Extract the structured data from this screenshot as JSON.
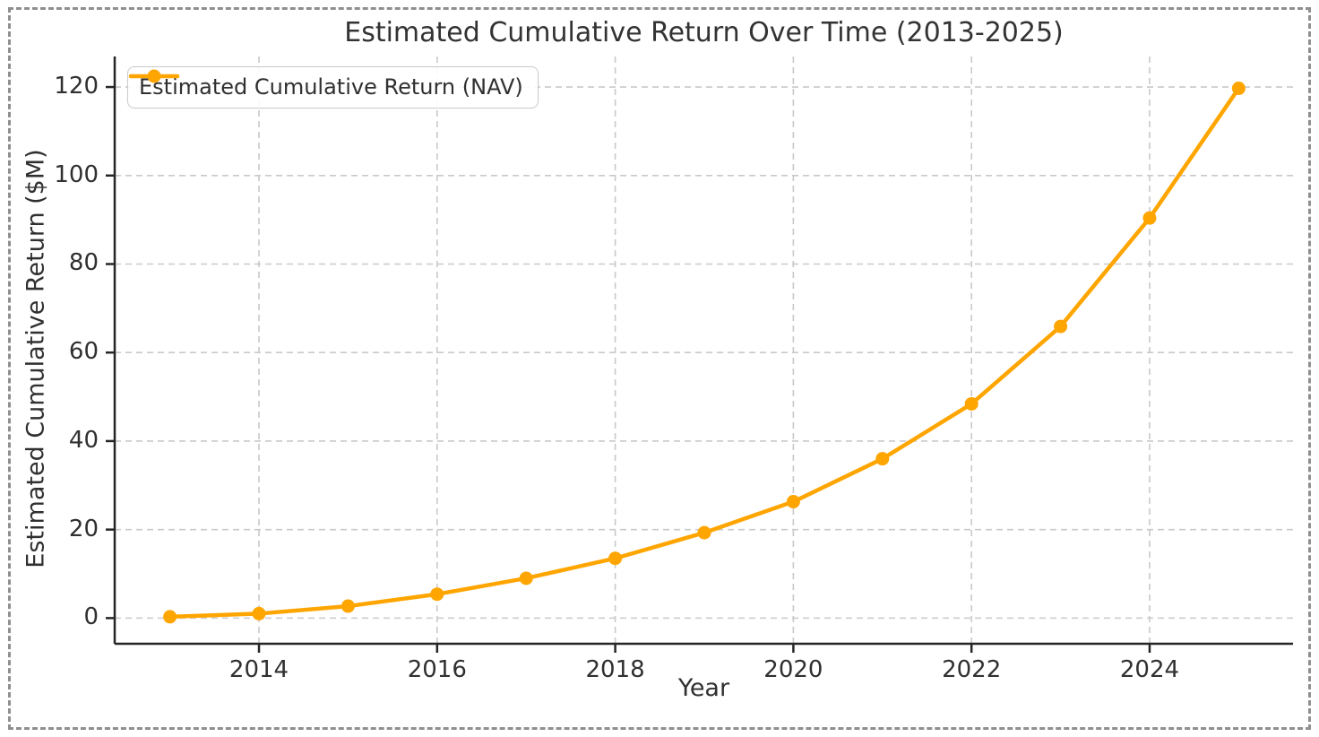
{
  "page": {
    "background": "#ffffff",
    "frame_border_color": "#8f8f8f",
    "frame_border_style": "dashed"
  },
  "chart_data": {
    "type": "line",
    "title": "Estimated Cumulative Return Over Time (2013-2025)",
    "xlabel": "Year",
    "ylabel": "Estimated Cumulative Return ($M)",
    "x": [
      2013,
      2014,
      2015,
      2016,
      2017,
      2018,
      2019,
      2020,
      2021,
      2022,
      2023,
      2024,
      2025
    ],
    "series": [
      {
        "name": "Estimated Cumulative Return (NAV)",
        "values": [
          0.3,
          1.0,
          2.7,
          5.4,
          9.0,
          13.5,
          19.3,
          26.3,
          36.0,
          48.4,
          65.9,
          90.4,
          119.7
        ],
        "color": "#FFA500",
        "marker": "circle"
      }
    ],
    "legend": [
      {
        "label": "Estimated Cumulative Return (NAV)",
        "color": "#FFA500"
      }
    ],
    "legend_position": "upper left",
    "xticks": [
      "2014",
      "2016",
      "2018",
      "2020",
      "2022",
      "2024"
    ],
    "xtick_values": [
      2014,
      2016,
      2018,
      2020,
      2022,
      2024
    ],
    "yticks": [
      "0",
      "20",
      "40",
      "60",
      "80",
      "100",
      "120"
    ],
    "ytick_values": [
      0,
      20,
      40,
      60,
      80,
      100,
      120
    ],
    "xlim": [
      2012.38,
      2025.61
    ],
    "ylim": [
      -5.8,
      126.9
    ],
    "grid": true,
    "grid_style": "dashed",
    "grid_color": "#c9c9c9",
    "spine_color": "#262626",
    "text_color": "#303030",
    "line_width": 4.5,
    "marker_radius": 7.5
  }
}
